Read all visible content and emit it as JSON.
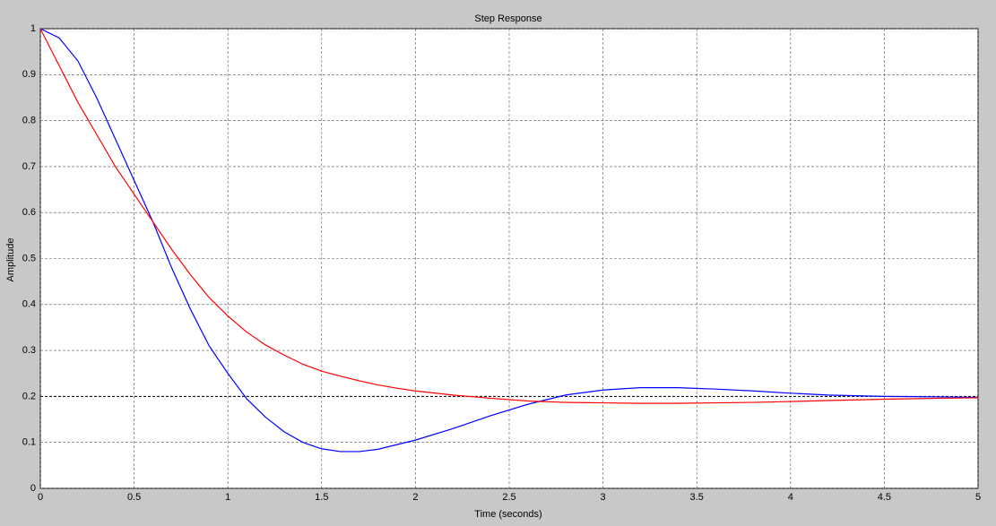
{
  "chart_data": {
    "type": "line",
    "title": "Step Response",
    "x_label": "Time (seconds)",
    "y_label": "Amplitude",
    "x": [
      0,
      0.1,
      0.2,
      0.3,
      0.4,
      0.5,
      0.6,
      0.7,
      0.8,
      0.9,
      1.0,
      1.1,
      1.2,
      1.3,
      1.4,
      1.5,
      1.6,
      1.7,
      1.8,
      1.9,
      2.0,
      2.2,
      2.4,
      2.6,
      2.8,
      3.0,
      3.2,
      3.4,
      3.6,
      3.8,
      4.0,
      4.2,
      4.5,
      4.8,
      5.0
    ],
    "series": [
      {
        "color": "#0000ff",
        "values": [
          1,
          0.98,
          0.93,
          0.85,
          0.76,
          0.67,
          0.58,
          0.48,
          0.39,
          0.31,
          0.25,
          0.195,
          0.155,
          0.123,
          0.1,
          0.086,
          0.08,
          0.08,
          0.085,
          0.095,
          0.105,
          0.13,
          0.158,
          0.183,
          0.203,
          0.214,
          0.219,
          0.219,
          0.216,
          0.212,
          0.207,
          0.203,
          0.2,
          0.199,
          0.198
        ]
      },
      {
        "color": "#ff0000",
        "values": [
          1,
          0.92,
          0.84,
          0.77,
          0.7,
          0.64,
          0.58,
          0.52,
          0.465,
          0.415,
          0.375,
          0.34,
          0.312,
          0.29,
          0.27,
          0.255,
          0.244,
          0.234,
          0.225,
          0.218,
          0.212,
          0.203,
          0.196,
          0.19,
          0.187,
          0.186,
          0.185,
          0.185,
          0.186,
          0.187,
          0.189,
          0.191,
          0.194,
          0.196,
          0.197
        ]
      }
    ],
    "reference_line": 0.2,
    "xlim": [
      0,
      5
    ],
    "ylim": [
      0,
      1
    ],
    "xticks": [
      0,
      0.5,
      1,
      1.5,
      2,
      2.5,
      3,
      3.5,
      4,
      4.5,
      5
    ],
    "yticks": [
      0,
      0.1,
      0.2,
      0.3,
      0.4,
      0.5,
      0.6,
      0.7,
      0.8,
      0.9,
      1
    ],
    "grid": true
  }
}
